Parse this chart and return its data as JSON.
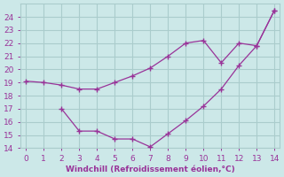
{
  "line1_x": [
    0,
    1,
    2,
    3,
    4,
    5,
    6,
    7,
    8,
    9,
    10,
    11,
    12,
    13,
    14
  ],
  "line1_y": [
    19.1,
    19.0,
    18.8,
    18.5,
    18.5,
    19.0,
    19.5,
    20.1,
    21.0,
    22.0,
    22.2,
    20.5,
    22.0,
    21.8,
    24.5
  ],
  "line2_x": [
    2,
    3,
    4,
    5,
    6,
    7,
    8,
    9,
    10,
    11,
    12,
    13,
    14
  ],
  "line2_y": [
    17.0,
    15.3,
    15.3,
    14.7,
    14.7,
    14.1,
    15.1,
    16.1,
    17.2,
    18.5,
    20.3,
    21.8,
    24.5
  ],
  "line_color": "#993399",
  "bg_color": "#cce8e8",
  "grid_color": "#aacccc",
  "xlabel": "Windchill (Refroidissement éolien,°C)",
  "xlabel_color": "#993399",
  "tick_color": "#993399",
  "ylim": [
    14,
    25
  ],
  "xlim": [
    -0.3,
    14.3
  ],
  "yticks": [
    14,
    15,
    16,
    17,
    18,
    19,
    20,
    21,
    22,
    23,
    24
  ],
  "xticks": [
    0,
    1,
    2,
    3,
    4,
    5,
    6,
    7,
    8,
    9,
    10,
    11,
    12,
    13,
    14
  ]
}
